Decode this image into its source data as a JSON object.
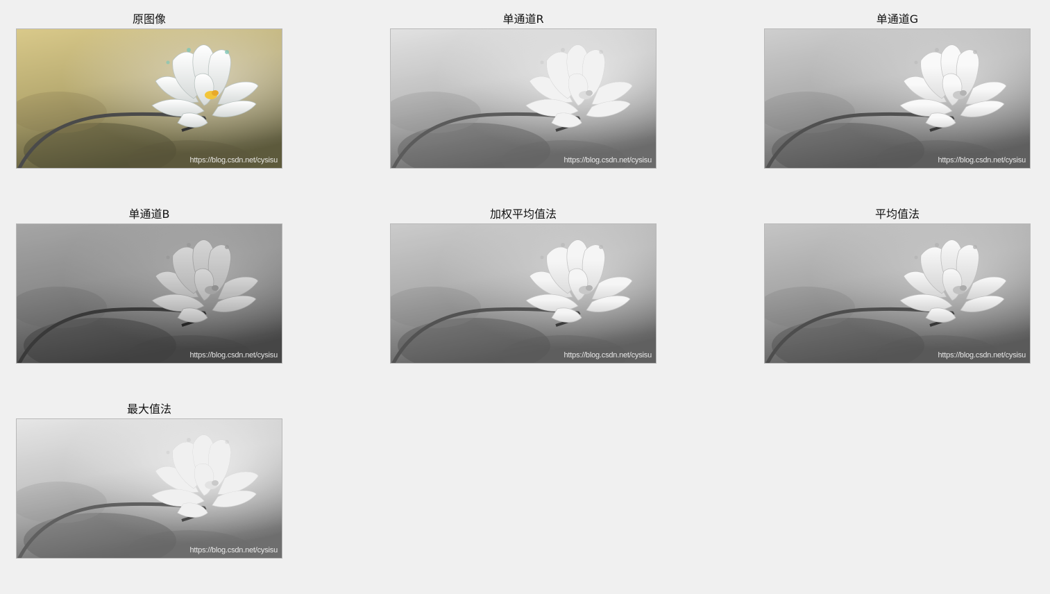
{
  "figure": {
    "panels": [
      {
        "title": "原图像",
        "tone": "color",
        "watermark": "https://blog.csdn.net/cysisu"
      },
      {
        "title": "单通道R",
        "tone": "r",
        "watermark": "https://blog.csdn.net/cysisu"
      },
      {
        "title": "单通道G",
        "tone": "g",
        "watermark": "https://blog.csdn.net/cysisu"
      },
      {
        "title": "单通道B",
        "tone": "b",
        "watermark": "https://blog.csdn.net/cysisu"
      },
      {
        "title": "加权平均值法",
        "tone": "w",
        "watermark": "https://blog.csdn.net/cysisu"
      },
      {
        "title": "平均值法",
        "tone": "a",
        "watermark": "https://blog.csdn.net/cysisu"
      },
      {
        "title": "最大值法",
        "tone": "m",
        "watermark": "https://blog.csdn.net/cysisu"
      }
    ]
  },
  "colors": {
    "background": "#f0f0f0",
    "frame_border": "#b8b8b8",
    "original_sky": "#d9c98a",
    "original_dark": "#5d5a3c"
  },
  "icons": [
    "lotus-image"
  ]
}
